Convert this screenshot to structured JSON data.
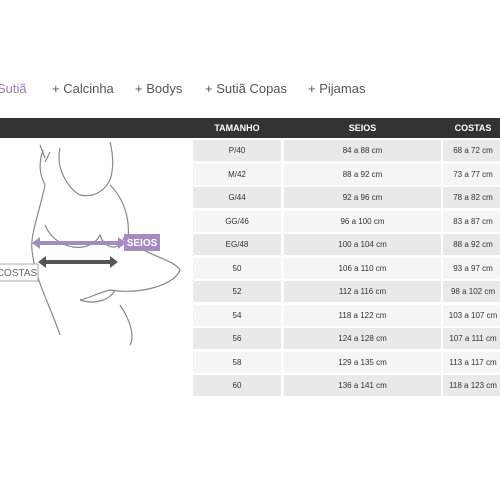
{
  "tabs": [
    "Sutiã",
    "+ Calcinha",
    "+ Bodys",
    "+ Sutiã Copas",
    "+ Pijamas"
  ],
  "figure": {
    "chest_label": "SEIOS",
    "back_label": "COSTAS"
  },
  "table": {
    "headers": [
      "TAMANHO",
      "SEIOS",
      "COSTAS"
    ],
    "rows": [
      [
        "P/40",
        "84 a 88 cm",
        "68 a 72 cm"
      ],
      [
        "M/42",
        "88 a 92 cm",
        "73 a 77 cm"
      ],
      [
        "G/44",
        "92 a 96 cm",
        "78 a 82 cm"
      ],
      [
        "GG/46",
        "96 a 100 cm",
        "83 a 87 cm"
      ],
      [
        "EG/48",
        "100 a 104 cm",
        "88 a 92 cm"
      ],
      [
        "50",
        "106 a 110 cm",
        "93 a 97 cm"
      ],
      [
        "52",
        "112 a 116 cm",
        "98 a 102 cm"
      ],
      [
        "54",
        "118 a 122 cm",
        "103 a 107 cm"
      ],
      [
        "56",
        "124 a 128 cm",
        "107 a 111 cm"
      ],
      [
        "58",
        "129 a 135 cm",
        "113 a 117 cm"
      ],
      [
        "60",
        "136 a 141 cm",
        "118 a 123 cm"
      ]
    ]
  }
}
